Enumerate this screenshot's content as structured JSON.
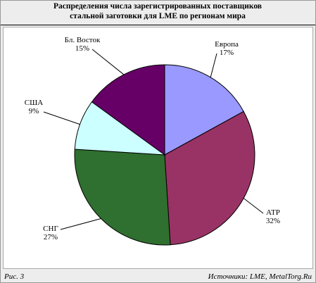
{
  "chart_data": {
    "type": "pie",
    "title": [
      "Распределения числа зарегистрированных поставщиков",
      "стальной заготовки для LME по регионам мира"
    ],
    "categories": [
      "Европа",
      "АТР",
      "СНГ",
      "США",
      "Бл. Восток"
    ],
    "values": [
      17,
      32,
      27,
      9,
      15
    ],
    "value_labels": [
      "17%",
      "32%",
      "27%",
      "9%",
      "15%"
    ],
    "colors": [
      "#9999ff",
      "#993366",
      "#2f6f2f",
      "#ccffff",
      "#660066"
    ],
    "figure_label": "Рис. 3",
    "source": "Источники: LME, MetalTorg.Ru"
  }
}
